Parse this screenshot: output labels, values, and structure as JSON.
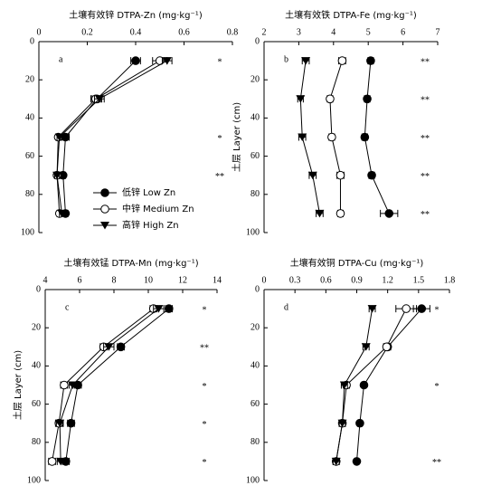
{
  "chart_data": [
    {
      "type": "line",
      "title": "土壤有效锌 DTPA-Zn (mg·kg⁻¹)",
      "panel": "a",
      "depths": [
        10,
        30,
        50,
        70,
        90
      ],
      "ylim": [
        0,
        100
      ],
      "yticks": [
        0,
        20,
        40,
        60,
        80,
        100
      ],
      "y_inverted": true,
      "xlim": [
        0,
        0.8
      ],
      "xticks": [
        0,
        0.2,
        0.4,
        0.6,
        0.8
      ],
      "legend": "lower-center",
      "series": [
        {
          "name": "低锌 Low Zn",
          "marker": "filled-circle",
          "color": "#000000",
          "values": [
            0.4,
            0.24,
            0.11,
            0.1,
            0.11
          ],
          "errors": [
            0.02,
            0.02,
            0.015,
            0.01,
            0.01
          ]
        },
        {
          "name": "中锌 Medium Zn",
          "marker": "open-circle",
          "color": "#000000",
          "values": [
            0.5,
            0.235,
            0.08,
            0.075,
            0.085
          ],
          "errors": [
            0.03,
            0.02,
            0.01,
            0.01,
            0.01
          ]
        },
        {
          "name": "高锌 High Zn",
          "marker": "triangle-down",
          "color": "#000000",
          "values": [
            0.53,
            0.25,
            0.085,
            0.075,
            0.095
          ],
          "errors": [
            0.02,
            0.02,
            0.01,
            0.01,
            0.01
          ]
        }
      ],
      "significance": [
        "*",
        null,
        "*",
        "**",
        null
      ]
    },
    {
      "type": "line",
      "title": "土壤有效铁 DTPA-Fe (mg·kg⁻¹)",
      "panel": "b",
      "ylabel": "土层 Layer (cm)",
      "depths": [
        10,
        30,
        50,
        70,
        90
      ],
      "ylim": [
        0,
        100
      ],
      "yticks": [
        0,
        20,
        40,
        60,
        80,
        100
      ],
      "y_inverted": true,
      "xlim": [
        2,
        7
      ],
      "xticks": [
        2,
        3,
        4,
        5,
        6,
        7
      ],
      "series": [
        {
          "marker": "filled-circle",
          "color": "#000000",
          "values": [
            5.07,
            4.97,
            4.9,
            5.1,
            5.6
          ],
          "errors": [
            0.08,
            0.08,
            0.08,
            0.08,
            0.25
          ]
        },
        {
          "marker": "open-circle",
          "color": "#000000",
          "values": [
            4.25,
            3.9,
            3.95,
            4.2,
            4.2
          ],
          "errors": [
            0.1,
            0.08,
            0.08,
            0.1,
            0.08
          ]
        },
        {
          "marker": "triangle-down",
          "color": "#000000",
          "values": [
            3.2,
            3.05,
            3.1,
            3.4,
            3.6
          ],
          "errors": [
            0.1,
            0.08,
            0.1,
            0.1,
            0.1
          ]
        }
      ],
      "significance": [
        "**",
        "**",
        "**",
        "**",
        "**"
      ]
    },
    {
      "type": "line",
      "title": "土壤有效锰 DTPA-Mn (mg·kg⁻¹)",
      "panel": "c",
      "ylabel": "土层 Layer (cm)",
      "depths": [
        10,
        30,
        50,
        70,
        90
      ],
      "ylim": [
        0,
        100
      ],
      "yticks": [
        0,
        20,
        40,
        60,
        80,
        100
      ],
      "y_inverted": true,
      "xlim": [
        4,
        14
      ],
      "xticks": [
        4,
        6,
        8,
        10,
        12,
        14
      ],
      "series": [
        {
          "marker": "filled-circle",
          "color": "#000000",
          "values": [
            11.2,
            8.4,
            5.9,
            5.5,
            5.2
          ],
          "errors": [
            0.2,
            0.2,
            0.2,
            0.2,
            0.2
          ]
        },
        {
          "marker": "open-circle",
          "color": "#000000",
          "values": [
            10.3,
            7.4,
            5.1,
            4.8,
            4.4
          ],
          "errors": [
            0.2,
            0.2,
            0.2,
            0.2,
            0.2
          ]
        },
        {
          "marker": "triangle-down",
          "color": "#000000",
          "values": [
            10.6,
            7.7,
            5.6,
            4.85,
            4.9
          ],
          "errors": [
            0.3,
            0.3,
            0.2,
            0.2,
            0.2
          ]
        }
      ],
      "significance": [
        "*",
        "**",
        "*",
        "*",
        "*"
      ]
    },
    {
      "type": "line",
      "title": "土壤有效铜 DTPA-Cu (mg·kg⁻¹)",
      "panel": "d",
      "depths": [
        10,
        30,
        50,
        70,
        90
      ],
      "ylim": [
        0,
        100
      ],
      "yticks": [
        0,
        20,
        40,
        60,
        80,
        100
      ],
      "y_inverted": true,
      "xlim": [
        0,
        1.8
      ],
      "xticks": [
        0,
        0.3,
        0.6,
        0.9,
        1.2,
        1.5,
        1.8
      ],
      "series": [
        {
          "marker": "filled-circle",
          "color": "#000000",
          "values": [
            1.53,
            1.2,
            0.97,
            0.93,
            0.9
          ],
          "errors": [
            0.08,
            0.03,
            0.02,
            0.02,
            0.02
          ]
        },
        {
          "marker": "open-circle",
          "color": "#000000",
          "values": [
            1.38,
            1.19,
            0.8,
            0.76,
            0.7
          ],
          "errors": [
            0.1,
            0.03,
            0.03,
            0.03,
            0.03
          ]
        },
        {
          "marker": "triangle-down",
          "color": "#000000",
          "values": [
            1.05,
            0.99,
            0.78,
            0.76,
            0.7
          ],
          "errors": [
            0.03,
            0.03,
            0.03,
            0.03,
            0.03
          ]
        }
      ],
      "significance": [
        "*",
        null,
        "*",
        null,
        "**"
      ]
    }
  ]
}
